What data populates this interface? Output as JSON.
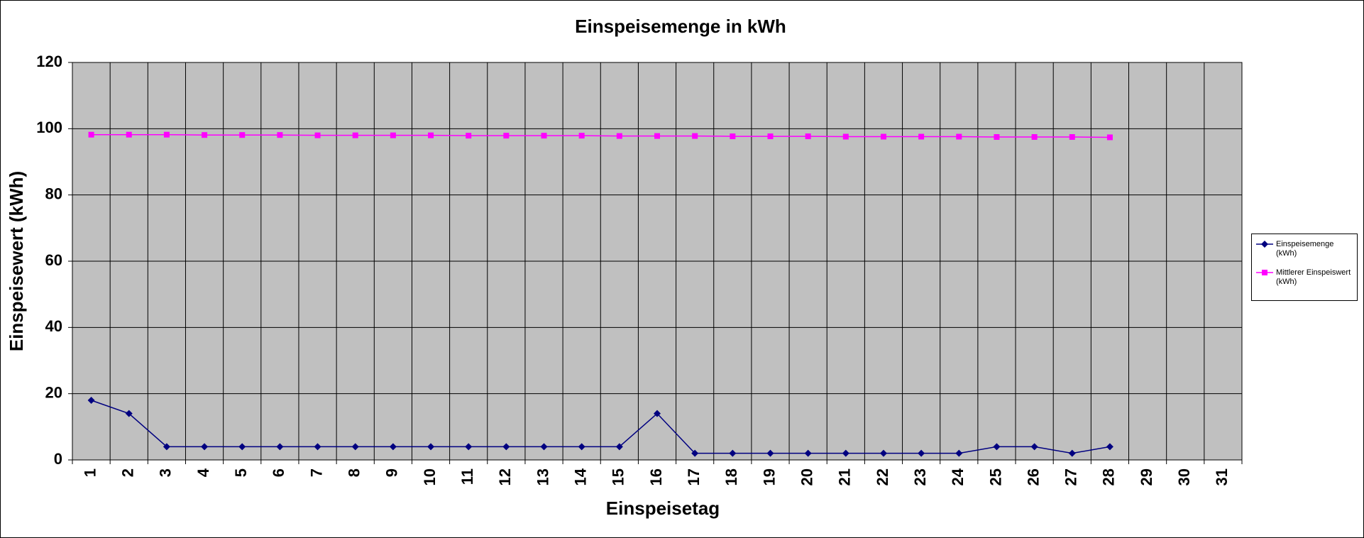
{
  "chart_data": {
    "type": "line",
    "title": "Einspeisemenge in kWh",
    "xlabel": "Einspeisetag",
    "ylabel": "Einspeisewert  (kWh)",
    "categories": [
      1,
      2,
      3,
      4,
      5,
      6,
      7,
      8,
      9,
      10,
      11,
      12,
      13,
      14,
      15,
      16,
      17,
      18,
      19,
      20,
      21,
      22,
      23,
      24,
      25,
      26,
      27,
      28,
      29,
      30,
      31
    ],
    "series": [
      {
        "name": "Einspeisemenge (kWh)",
        "color": "#000080",
        "marker": "diamond",
        "values": [
          18,
          14,
          4,
          4,
          4,
          4,
          4,
          4,
          4,
          4,
          4,
          4,
          4,
          4,
          4,
          14,
          2,
          2,
          2,
          2,
          2,
          2,
          2,
          2,
          4,
          4,
          2,
          4,
          null,
          null,
          null
        ]
      },
      {
        "name": "Mittlerer Einspeiswert (kWh)",
        "color": "#ff00ff",
        "marker": "square",
        "values": [
          98.2,
          98.2,
          98.2,
          98.1,
          98.1,
          98.1,
          98.0,
          98.0,
          98.0,
          98.0,
          97.9,
          97.9,
          97.9,
          97.9,
          97.8,
          97.8,
          97.8,
          97.7,
          97.7,
          97.7,
          97.6,
          97.6,
          97.6,
          97.6,
          97.5,
          97.5,
          97.5,
          97.4,
          null,
          null,
          null
        ]
      }
    ],
    "ylim": [
      0,
      120
    ],
    "yticks": [
      0,
      20,
      40,
      60,
      80,
      100,
      120
    ],
    "grid": true,
    "legend": "right"
  }
}
